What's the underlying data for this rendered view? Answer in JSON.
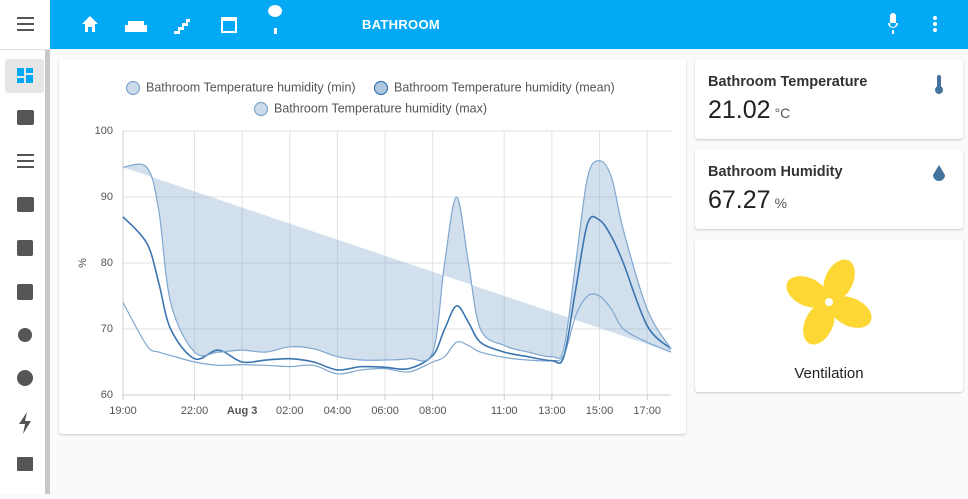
{
  "header": {
    "title": "BATHROOM"
  },
  "chart_data": {
    "type": "line",
    "ylabel": "%",
    "x": [
      0,
      1,
      1.5,
      2,
      3,
      4,
      5,
      6,
      7,
      8,
      9,
      10,
      11,
      12,
      13,
      13.5,
      14,
      14.5,
      15,
      16,
      17,
      18,
      18.5,
      19,
      19.5,
      20,
      20.5,
      21,
      22,
      23
    ],
    "series": [
      {
        "name": "Bathroom Temperature humidity (min)",
        "color": "#7fa7cf",
        "values": [
          74,
          67.5,
          66.5,
          66,
          65,
          64.5,
          64.6,
          64.5,
          64.3,
          64.5,
          63.2,
          63.8,
          64,
          63.5,
          65,
          65.8,
          68,
          67.5,
          66.5,
          65.7,
          65.3,
          65.2,
          66,
          72,
          75,
          75,
          73,
          70,
          68,
          66.5
        ]
      },
      {
        "name": "Bathroom Temperature humidity (mean)",
        "color": "#3a75b0",
        "values": [
          87,
          83,
          77,
          70,
          65.5,
          66.8,
          65,
          65.3,
          65.5,
          65,
          63.8,
          64.3,
          64.2,
          64,
          66,
          70,
          73.5,
          71,
          68,
          66.5,
          65.8,
          65.2,
          65.8,
          76,
          86,
          86.5,
          84,
          80,
          70.5,
          67
        ]
      },
      {
        "name": "Bathroom Temperature humidity (max)",
        "color": "#7fa7cf",
        "values": [
          94.5,
          94.5,
          88,
          74,
          66.5,
          66.5,
          66.8,
          66.5,
          67.3,
          67,
          65.8,
          65.3,
          65.3,
          65.5,
          66.5,
          80,
          90,
          80,
          70,
          67.5,
          66.5,
          65.8,
          67,
          80,
          93,
          95.5,
          93,
          85,
          73,
          67
        ]
      }
    ],
    "xlim": [
      0,
      23
    ],
    "xticks": [
      {
        "value": 0,
        "label": "19:00"
      },
      {
        "value": 3,
        "label": "22:00"
      },
      {
        "value": 5,
        "label": "Aug 3"
      },
      {
        "value": 7,
        "label": "02:00"
      },
      {
        "value": 9,
        "label": "04:00"
      },
      {
        "value": 11,
        "label": "06:00"
      },
      {
        "value": 13,
        "label": "08:00"
      },
      {
        "value": 16,
        "label": "11:00"
      },
      {
        "value": 18,
        "label": "13:00"
      },
      {
        "value": 20,
        "label": "15:00"
      },
      {
        "value": 22,
        "label": "17:00"
      }
    ],
    "ylim": [
      60,
      100
    ],
    "yticks": [
      60,
      70,
      80,
      90,
      100
    ],
    "grid": true
  },
  "cards": [
    {
      "name": "Bathroom Temperature",
      "value": "21.02",
      "unit": "°C"
    },
    {
      "name": "Bathroom Humidity",
      "value": "67.27",
      "unit": "%"
    },
    {
      "name": "Ventilation"
    }
  ]
}
